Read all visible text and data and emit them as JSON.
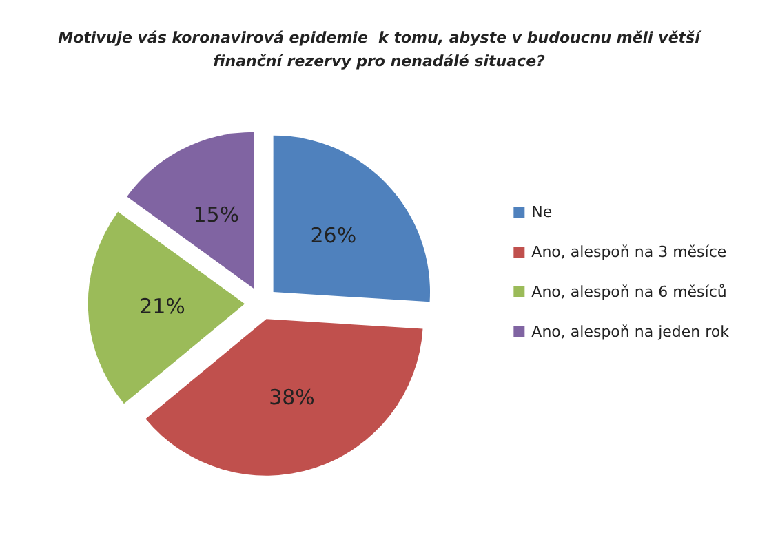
{
  "chart_data": {
    "type": "pie",
    "title": "Motivuje vás koronavirová epidemie  k tomu, abyste v budoucnu měli větší\nfinanční rezervy pro nenadálé situace?",
    "categories": [
      "Ne",
      "Ano, alespoň na 3 měsíce",
      "Ano, alespoň na 6 měsíců",
      "Ano, alespoň na jeden rok"
    ],
    "values": [
      26,
      38,
      21,
      15
    ],
    "colors": [
      "#4f81bd",
      "#c0504d",
      "#9bbb59",
      "#8064a2"
    ],
    "value_labels": [
      "26%",
      "38%",
      "21%",
      "15%"
    ],
    "legend": "right"
  }
}
